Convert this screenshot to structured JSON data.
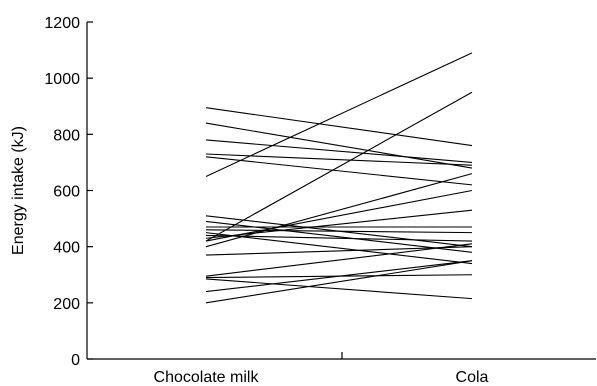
{
  "chart_data": {
    "type": "line",
    "title": "",
    "xlabel": "",
    "ylabel": "Energy intake (kJ)",
    "categories": [
      "Chocolate milk",
      "Cola"
    ],
    "ylim": [
      0,
      1200
    ],
    "yticks": [
      0,
      200,
      400,
      600,
      800,
      1000,
      1200
    ],
    "grid": false,
    "legend": "none",
    "series": [
      {
        "values": [
          895,
          760
        ]
      },
      {
        "values": [
          840,
          680
        ]
      },
      {
        "values": [
          780,
          700
        ]
      },
      {
        "values": [
          730,
          690
        ]
      },
      {
        "values": [
          720,
          620
        ]
      },
      {
        "values": [
          650,
          1090
        ]
      },
      {
        "values": [
          510,
          400
        ]
      },
      {
        "values": [
          490,
          380
        ]
      },
      {
        "values": [
          470,
          470
        ]
      },
      {
        "values": [
          460,
          450
        ]
      },
      {
        "values": [
          450,
          340
        ]
      },
      {
        "values": [
          440,
          420
        ]
      },
      {
        "values": [
          430,
          530
        ]
      },
      {
        "values": [
          420,
          950
        ]
      },
      {
        "values": [
          420,
          600
        ]
      },
      {
        "values": [
          400,
          660
        ]
      },
      {
        "values": [
          370,
          400
        ]
      },
      {
        "values": [
          295,
          410
        ]
      },
      {
        "values": [
          290,
          300
        ]
      },
      {
        "values": [
          285,
          215
        ]
      },
      {
        "values": [
          240,
          350
        ]
      },
      {
        "values": [
          200,
          350
        ]
      }
    ]
  }
}
